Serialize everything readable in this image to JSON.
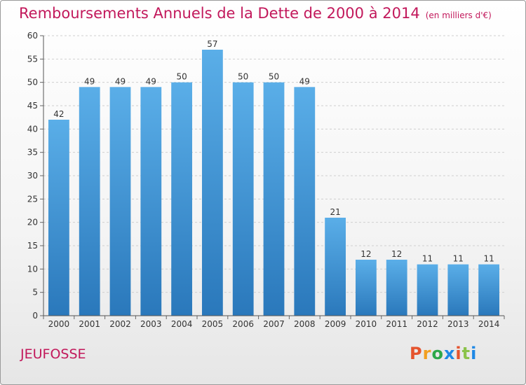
{
  "title": "Remboursements Annuels de la Dette de 2000 à 2014",
  "unit": "(en milliers d'€)",
  "commune": "JEUFOSSE",
  "logo": {
    "letters": [
      "P",
      "r",
      "o",
      "x",
      "i",
      "t",
      "i"
    ],
    "colors": [
      "#e5532d",
      "#f29f1f",
      "#2da84a",
      "#1e88e5",
      "#e5532d",
      "#8bc34a",
      "#1e88e5"
    ]
  },
  "colors": {
    "accent": "#c2185b",
    "bar_top": "#5aaee8",
    "bar_bottom": "#2a78bb"
  },
  "chart_data": {
    "type": "bar",
    "title": "Remboursements Annuels de la Dette de 2000 à 2014",
    "categories": [
      "2000",
      "2001",
      "2002",
      "2003",
      "2004",
      "2005",
      "2006",
      "2007",
      "2008",
      "2009",
      "2010",
      "2011",
      "2012",
      "2013",
      "2014"
    ],
    "values": [
      42,
      49,
      49,
      49,
      50,
      57,
      50,
      50,
      49,
      21,
      12,
      12,
      11,
      11,
      11
    ],
    "ylim": [
      0,
      60
    ],
    "yticks": [
      0,
      5,
      10,
      15,
      20,
      25,
      30,
      35,
      40,
      45,
      50,
      55,
      60
    ],
    "grid": true
  }
}
